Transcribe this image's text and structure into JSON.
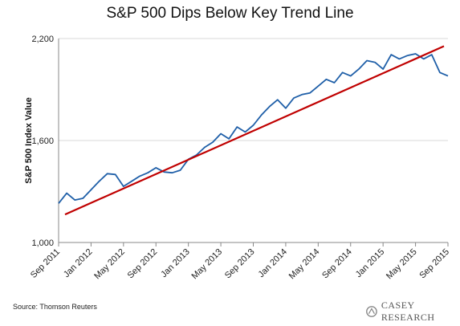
{
  "chart_data": {
    "type": "line",
    "title": "S&P 500 Dips Below Key Trend Line",
    "xlabel": "",
    "ylabel": "S&P 500 Index Value",
    "ylim": [
      1000,
      2200
    ],
    "yticks": [
      {
        "value": 1000,
        "label": "1,000"
      },
      {
        "value": 1600,
        "label": "1,600"
      },
      {
        "value": 2200,
        "label": "2,200"
      }
    ],
    "xticks": [
      "Sep 2011",
      "Jan 2012",
      "May 2012",
      "Sep 2012",
      "Jan 2013",
      "May 2013",
      "Sep 2013",
      "Jan 2014",
      "May 2014",
      "Sep 2014",
      "Jan 2015",
      "May 2015",
      "Sep 2015"
    ],
    "grid": "horizontal",
    "legend": "none",
    "colors": {
      "series": "#1f5fa8",
      "trend": "#c00000",
      "grid": "#d9d9d9"
    },
    "series": [
      {
        "type": "line",
        "x": [
          "2011-09",
          "2011-10",
          "2011-11",
          "2011-12",
          "2012-01",
          "2012-02",
          "2012-03",
          "2012-04",
          "2012-05",
          "2012-06",
          "2012-07",
          "2012-08",
          "2012-09",
          "2012-10",
          "2012-11",
          "2012-12",
          "2013-01",
          "2013-02",
          "2013-03",
          "2013-04",
          "2013-05",
          "2013-06",
          "2013-07",
          "2013-08",
          "2013-09",
          "2013-10",
          "2013-11",
          "2013-12",
          "2014-01",
          "2014-02",
          "2014-03",
          "2014-04",
          "2014-05",
          "2014-06",
          "2014-07",
          "2014-08",
          "2014-09",
          "2014-10",
          "2014-11",
          "2014-12",
          "2015-01",
          "2015-02",
          "2015-03",
          "2015-04",
          "2015-05",
          "2015-06",
          "2015-07",
          "2015-08",
          "2015-09"
        ],
        "values": [
          1230,
          1290,
          1250,
          1260,
          1310,
          1360,
          1405,
          1400,
          1330,
          1360,
          1390,
          1410,
          1440,
          1415,
          1410,
          1425,
          1490,
          1515,
          1560,
          1590,
          1640,
          1610,
          1680,
          1650,
          1690,
          1750,
          1800,
          1840,
          1790,
          1850,
          1870,
          1880,
          1920,
          1960,
          1940,
          2000,
          1980,
          2020,
          2070,
          2060,
          2020,
          2105,
          2080,
          2100,
          2110,
          2080,
          2105,
          2000,
          1980
        ]
      },
      {
        "type": "trend",
        "x": [
          "2011-09",
          "2015-09"
        ],
        "values": [
          1165,
          2155
        ]
      }
    ]
  },
  "source": "Source: Thomson Reuters",
  "logo_text": "CASEY RESEARCH"
}
